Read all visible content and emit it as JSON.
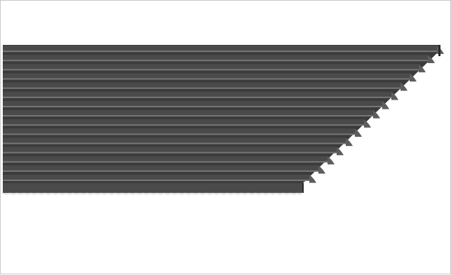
{
  "image": {
    "subject": "ribbed-belt-profile-render",
    "rib_count": 15,
    "colors": {
      "background": "#ffffff",
      "border": "#c8c8c8",
      "belt_dark": "#3b3b3b",
      "belt_mid": "#4a4a4a",
      "rib_highlight": "#777777",
      "end_face": "#5d5d5d",
      "edge_shadow": "#2a2a2a",
      "teeth_light": "#d8d8d8"
    }
  }
}
